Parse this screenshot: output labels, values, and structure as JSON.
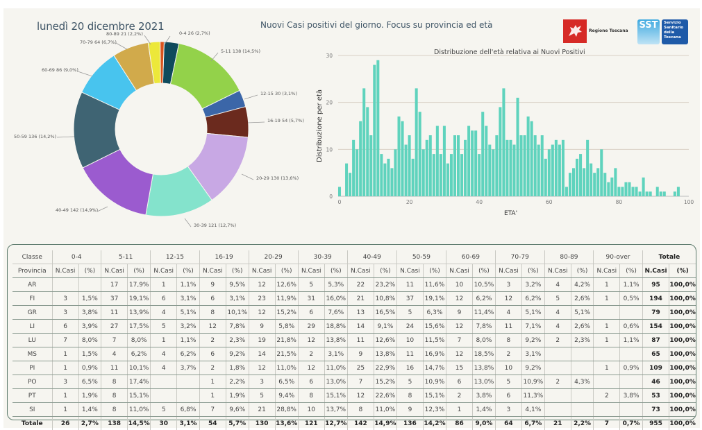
{
  "header": {
    "date": "lunedì 20 dicembre 2021",
    "title": "Nuovi Casi positivi del giorno. Focus su provincia ed età",
    "logo_regione_label": "Regione Toscana",
    "logo_sst_abbr": "SST",
    "logo_sst_label": [
      "Servizio",
      "Sanitario",
      "della",
      "Toscana"
    ]
  },
  "colors": {
    "background": "#f6f5f0",
    "histogram_bar": "#5fd3bd",
    "title_text": "#3f5566",
    "table_border": "#5c7a6c"
  },
  "chart_data": [
    {
      "type": "pie",
      "variant": "donut",
      "title": "",
      "slices": [
        {
          "label": "0-4",
          "value": 26,
          "pct": "2,7%",
          "color": "#0f4a5c",
          "text": "0-4 26 (2,7%)"
        },
        {
          "label": "5-11",
          "value": 138,
          "pct": "14,5%",
          "color": "#93d24a",
          "text": "5-11 138 (14,5%)"
        },
        {
          "label": "12-15",
          "value": 30,
          "pct": "3,1%",
          "color": "#3b66a8",
          "text": "12-15 30 (3,1%)"
        },
        {
          "label": "16-19",
          "value": 54,
          "pct": "5,7%",
          "color": "#6b2a1e",
          "text": "16-19 54 (5,7%)"
        },
        {
          "label": "20-29",
          "value": 130,
          "pct": "13,6%",
          "color": "#c8a8e4",
          "text": "20-29 130 (13,6%)"
        },
        {
          "label": "30-39",
          "value": 121,
          "pct": "12,7%",
          "color": "#84e3cc",
          "text": "30-39 121 (12,7%)"
        },
        {
          "label": "40-49",
          "value": 142,
          "pct": "14,9%",
          "color": "#9b5bcf",
          "text": "40-49 142 (14,9%)"
        },
        {
          "label": "50-59",
          "value": 136,
          "pct": "14,2%",
          "color": "#3f6473",
          "text": "50-59 136 (14,2%)"
        },
        {
          "label": "60-69",
          "value": 86,
          "pct": "9,0%",
          "color": "#48c4ee",
          "text": "60-69 86 (9,0%)"
        },
        {
          "label": "70-79",
          "value": 64,
          "pct": "6,7%",
          "color": "#d1aa4b",
          "text": "70-79 64 (6,7%)"
        },
        {
          "label": "80-89",
          "value": 21,
          "pct": "2,2%",
          "color": "#ece83a",
          "text": "80-89 21 (2,2%)"
        },
        {
          "label": "90-over",
          "value": 7,
          "pct": "0,7%",
          "color": "#d9531e",
          "text": ""
        }
      ]
    },
    {
      "type": "bar",
      "title": "Distribuzione dell'età relativa ai Nuovi Positivi",
      "xlabel": "ETA'",
      "ylabel": "Distribuzione per età",
      "xlim": [
        0,
        100
      ],
      "ylim": [
        0,
        30
      ],
      "xticks": [
        0,
        20,
        40,
        60,
        80,
        100
      ],
      "yticks": [
        0,
        10,
        20,
        30
      ],
      "grid": true,
      "x": [
        0,
        1,
        2,
        3,
        4,
        5,
        6,
        7,
        8,
        9,
        10,
        11,
        12,
        13,
        14,
        15,
        16,
        17,
        18,
        19,
        20,
        21,
        22,
        23,
        24,
        25,
        26,
        27,
        28,
        29,
        30,
        31,
        32,
        33,
        34,
        35,
        36,
        37,
        38,
        39,
        40,
        41,
        42,
        43,
        44,
        45,
        46,
        47,
        48,
        49,
        50,
        51,
        52,
        53,
        54,
        55,
        56,
        57,
        58,
        59,
        60,
        61,
        62,
        63,
        64,
        65,
        66,
        67,
        68,
        69,
        70,
        71,
        72,
        73,
        74,
        75,
        76,
        77,
        78,
        79,
        80,
        81,
        82,
        83,
        84,
        85,
        86,
        87,
        88,
        89,
        90,
        91,
        92,
        93,
        94,
        95,
        96,
        97
      ],
      "values": [
        2,
        0,
        7,
        5,
        12,
        10,
        16,
        23,
        19,
        13,
        28,
        29,
        9,
        7,
        8,
        6,
        10,
        17,
        16,
        11,
        13,
        8,
        23,
        18,
        10,
        12,
        13,
        9,
        15,
        9,
        15,
        7,
        9,
        13,
        13,
        9,
        12,
        15,
        14,
        14,
        9,
        18,
        15,
        11,
        10,
        13,
        19,
        23,
        12,
        12,
        11,
        21,
        13,
        13,
        17,
        16,
        13,
        11,
        13,
        8,
        10,
        11,
        12,
        11,
        12,
        2,
        5,
        6,
        8,
        9,
        6,
        12,
        7,
        5,
        6,
        10,
        5,
        3,
        4,
        6,
        2,
        2,
        3,
        3,
        2,
        2,
        1,
        4,
        1,
        1,
        0,
        2,
        1,
        1,
        0,
        0,
        1,
        2
      ]
    }
  ],
  "table": {
    "corner_row1": "Classe",
    "corner_row2": "Provincia",
    "classes": [
      "0-4",
      "5-11",
      "12-15",
      "16-19",
      "20-29",
      "30-39",
      "40-49",
      "50-59",
      "60-69",
      "70-79",
      "80-89",
      "90-over"
    ],
    "total_label": "Totale",
    "sub_n": "N.Casi",
    "sub_p": "(%)",
    "rows": [
      {
        "prov": "AR",
        "cells": [
          [
            "",
            ""
          ],
          [
            "17",
            "17,9%"
          ],
          [
            "1",
            "1,1%"
          ],
          [
            "9",
            "9,5%"
          ],
          [
            "12",
            "12,6%"
          ],
          [
            "5",
            "5,3%"
          ],
          [
            "22",
            "23,2%"
          ],
          [
            "11",
            "11,6%"
          ],
          [
            "10",
            "10,5%"
          ],
          [
            "3",
            "3,2%"
          ],
          [
            "4",
            "4,2%"
          ],
          [
            "1",
            "1,1%"
          ]
        ],
        "tot": [
          "95",
          "100,0%"
        ]
      },
      {
        "prov": "FI",
        "cells": [
          [
            "3",
            "1,5%"
          ],
          [
            "37",
            "19,1%"
          ],
          [
            "6",
            "3,1%"
          ],
          [
            "6",
            "3,1%"
          ],
          [
            "23",
            "11,9%"
          ],
          [
            "31",
            "16,0%"
          ],
          [
            "21",
            "10,8%"
          ],
          [
            "37",
            "19,1%"
          ],
          [
            "12",
            "6,2%"
          ],
          [
            "12",
            "6,2%"
          ],
          [
            "5",
            "2,6%"
          ],
          [
            "1",
            "0,5%"
          ]
        ],
        "tot": [
          "194",
          "100,0%"
        ]
      },
      {
        "prov": "GR",
        "cells": [
          [
            "3",
            "3,8%"
          ],
          [
            "11",
            "13,9%"
          ],
          [
            "4",
            "5,1%"
          ],
          [
            "8",
            "10,1%"
          ],
          [
            "12",
            "15,2%"
          ],
          [
            "6",
            "7,6%"
          ],
          [
            "13",
            "16,5%"
          ],
          [
            "5",
            "6,3%"
          ],
          [
            "9",
            "11,4%"
          ],
          [
            "4",
            "5,1%"
          ],
          [
            "4",
            "5,1%"
          ],
          [
            "",
            ""
          ]
        ],
        "tot": [
          "79",
          "100,0%"
        ]
      },
      {
        "prov": "LI",
        "cells": [
          [
            "6",
            "3,9%"
          ],
          [
            "27",
            "17,5%"
          ],
          [
            "5",
            "3,2%"
          ],
          [
            "12",
            "7,8%"
          ],
          [
            "9",
            "5,8%"
          ],
          [
            "29",
            "18,8%"
          ],
          [
            "14",
            "9,1%"
          ],
          [
            "24",
            "15,6%"
          ],
          [
            "12",
            "7,8%"
          ],
          [
            "11",
            "7,1%"
          ],
          [
            "4",
            "2,6%"
          ],
          [
            "1",
            "0,6%"
          ]
        ],
        "tot": [
          "154",
          "100,0%"
        ]
      },
      {
        "prov": "LU",
        "cells": [
          [
            "7",
            "8,0%"
          ],
          [
            "7",
            "8,0%"
          ],
          [
            "1",
            "1,1%"
          ],
          [
            "2",
            "2,3%"
          ],
          [
            "19",
            "21,8%"
          ],
          [
            "12",
            "13,8%"
          ],
          [
            "11",
            "12,6%"
          ],
          [
            "10",
            "11,5%"
          ],
          [
            "7",
            "8,0%"
          ],
          [
            "8",
            "9,2%"
          ],
          [
            "2",
            "2,3%"
          ],
          [
            "1",
            "1,1%"
          ]
        ],
        "tot": [
          "87",
          "100,0%"
        ]
      },
      {
        "prov": "MS",
        "cells": [
          [
            "1",
            "1,5%"
          ],
          [
            "4",
            "6,2%"
          ],
          [
            "4",
            "6,2%"
          ],
          [
            "6",
            "9,2%"
          ],
          [
            "14",
            "21,5%"
          ],
          [
            "2",
            "3,1%"
          ],
          [
            "9",
            "13,8%"
          ],
          [
            "11",
            "16,9%"
          ],
          [
            "12",
            "18,5%"
          ],
          [
            "2",
            "3,1%"
          ],
          [
            "",
            ""
          ],
          [
            "",
            ""
          ]
        ],
        "tot": [
          "65",
          "100,0%"
        ]
      },
      {
        "prov": "PI",
        "cells": [
          [
            "1",
            "0,9%"
          ],
          [
            "11",
            "10,1%"
          ],
          [
            "4",
            "3,7%"
          ],
          [
            "2",
            "1,8%"
          ],
          [
            "12",
            "11,0%"
          ],
          [
            "12",
            "11,0%"
          ],
          [
            "25",
            "22,9%"
          ],
          [
            "16",
            "14,7%"
          ],
          [
            "15",
            "13,8%"
          ],
          [
            "10",
            "9,2%"
          ],
          [
            "",
            ""
          ],
          [
            "1",
            "0,9%"
          ]
        ],
        "tot": [
          "109",
          "100,0%"
        ]
      },
      {
        "prov": "PO",
        "cells": [
          [
            "3",
            "6,5%"
          ],
          [
            "8",
            "17,4%"
          ],
          [
            "",
            ""
          ],
          [
            "1",
            "2,2%"
          ],
          [
            "3",
            "6,5%"
          ],
          [
            "6",
            "13,0%"
          ],
          [
            "7",
            "15,2%"
          ],
          [
            "5",
            "10,9%"
          ],
          [
            "6",
            "13,0%"
          ],
          [
            "5",
            "10,9%"
          ],
          [
            "2",
            "4,3%"
          ],
          [
            "",
            ""
          ]
        ],
        "tot": [
          "46",
          "100,0%"
        ]
      },
      {
        "prov": "PT",
        "cells": [
          [
            "1",
            "1,9%"
          ],
          [
            "8",
            "15,1%"
          ],
          [
            "",
            ""
          ],
          [
            "1",
            "1,9%"
          ],
          [
            "5",
            "9,4%"
          ],
          [
            "8",
            "15,1%"
          ],
          [
            "12",
            "22,6%"
          ],
          [
            "8",
            "15,1%"
          ],
          [
            "2",
            "3,8%"
          ],
          [
            "6",
            "11,3%"
          ],
          [
            "",
            ""
          ],
          [
            "2",
            "3,8%"
          ]
        ],
        "tot": [
          "53",
          "100,0%"
        ]
      },
      {
        "prov": "SI",
        "cells": [
          [
            "1",
            "1,4%"
          ],
          [
            "8",
            "11,0%"
          ],
          [
            "5",
            "6,8%"
          ],
          [
            "7",
            "9,6%"
          ],
          [
            "21",
            "28,8%"
          ],
          [
            "10",
            "13,7%"
          ],
          [
            "8",
            "11,0%"
          ],
          [
            "9",
            "12,3%"
          ],
          [
            "1",
            "1,4%"
          ],
          [
            "3",
            "4,1%"
          ],
          [
            "",
            ""
          ],
          [
            "",
            ""
          ]
        ],
        "tot": [
          "73",
          "100,0%"
        ]
      }
    ],
    "totals": {
      "prov": "Totale",
      "cells": [
        [
          "26",
          "2,7%"
        ],
        [
          "138",
          "14,5%"
        ],
        [
          "30",
          "3,1%"
        ],
        [
          "54",
          "5,7%"
        ],
        [
          "130",
          "13,6%"
        ],
        [
          "121",
          "12,7%"
        ],
        [
          "142",
          "14,9%"
        ],
        [
          "136",
          "14,2%"
        ],
        [
          "86",
          "9,0%"
        ],
        [
          "64",
          "6,7%"
        ],
        [
          "21",
          "2,2%"
        ],
        [
          "7",
          "0,7%"
        ]
      ],
      "tot": [
        "955",
        "100,0%"
      ]
    }
  }
}
